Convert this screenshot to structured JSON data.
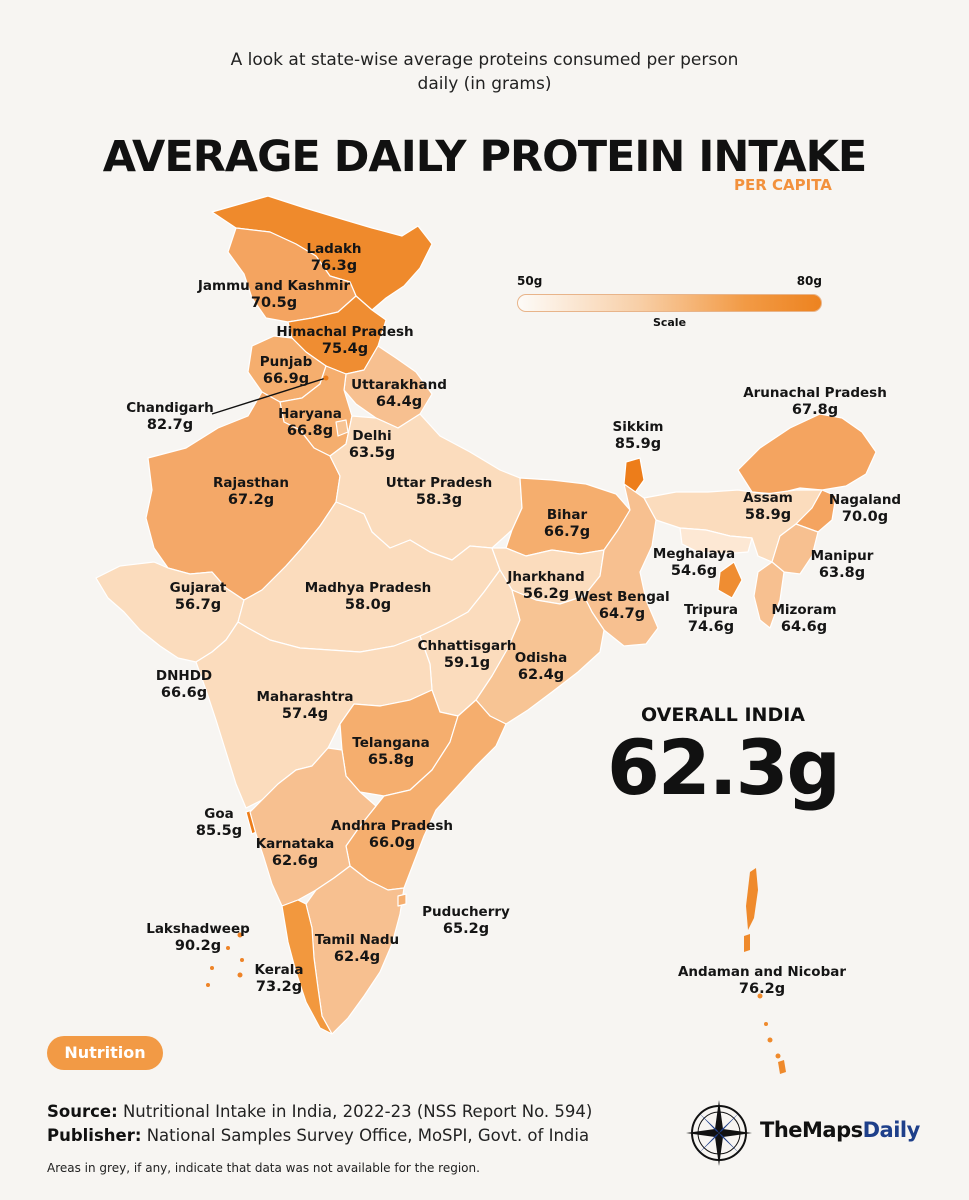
{
  "header": {
    "subtitle_line1": "A look at state-wise average proteins consumed per person",
    "subtitle_line2": "daily (in grams)",
    "title": "AVERAGE DAILY PROTEIN INTAKE",
    "title_sub": "PER CAPITA"
  },
  "scale": {
    "min_label": "50g",
    "max_label": "80g",
    "caption": "Scale",
    "min": 50,
    "max": 80
  },
  "regions": [
    {
      "name": "Ladakh",
      "value": "76.3g"
    },
    {
      "name": "Jammu and Kashmir",
      "value": "70.5g"
    },
    {
      "name": "Himachal Pradesh",
      "value": "75.4g"
    },
    {
      "name": "Punjab",
      "value": "66.9g"
    },
    {
      "name": "Uttarakhand",
      "value": "64.4g"
    },
    {
      "name": "Chandigarh",
      "value": "82.7g"
    },
    {
      "name": "Haryana",
      "value": "66.8g"
    },
    {
      "name": "Delhi",
      "value": "63.5g"
    },
    {
      "name": "Rajasthan",
      "value": "67.2g"
    },
    {
      "name": "Uttar Pradesh",
      "value": "58.3g"
    },
    {
      "name": "Bihar",
      "value": "66.7g"
    },
    {
      "name": "Sikkim",
      "value": "85.9g"
    },
    {
      "name": "Arunachal Pradesh",
      "value": "67.8g"
    },
    {
      "name": "Assam",
      "value": "58.9g"
    },
    {
      "name": "Nagaland",
      "value": "70.0g"
    },
    {
      "name": "Meghalaya",
      "value": "54.6g"
    },
    {
      "name": "Manipur",
      "value": "63.8g"
    },
    {
      "name": "Tripura",
      "value": "74.6g"
    },
    {
      "name": "Mizoram",
      "value": "64.6g"
    },
    {
      "name": "Gujarat",
      "value": "56.7g"
    },
    {
      "name": "Madhya Pradesh",
      "value": "58.0g"
    },
    {
      "name": "Jharkhand",
      "value": "56.2g"
    },
    {
      "name": "West Bengal",
      "value": "64.7g"
    },
    {
      "name": "Chhattisgarh",
      "value": "59.1g"
    },
    {
      "name": "Odisha",
      "value": "62.4g"
    },
    {
      "name": "DNHDD",
      "value": "66.6g"
    },
    {
      "name": "Maharashtra",
      "value": "57.4g"
    },
    {
      "name": "Telangana",
      "value": "65.8g"
    },
    {
      "name": "Goa",
      "value": "85.5g"
    },
    {
      "name": "Andhra Pradesh",
      "value": "66.0g"
    },
    {
      "name": "Karnataka",
      "value": "62.6g"
    },
    {
      "name": "Puducherry",
      "value": "65.2g"
    },
    {
      "name": "Lakshadweep",
      "value": "90.2g"
    },
    {
      "name": "Tamil Nadu",
      "value": "62.4g"
    },
    {
      "name": "Kerala",
      "value": "73.2g"
    },
    {
      "name": "Andaman and Nicobar",
      "value": "76.2g"
    }
  ],
  "overall": {
    "label": "OVERALL INDIA",
    "value": "62.3g"
  },
  "badge": "Nutrition",
  "source": {
    "source_label": "Source:",
    "source_text": "Nutritional Intake in India, 2022-23 (NSS Report No. 594)",
    "publisher_label": "Publisher:",
    "publisher_text": "National Samples Survey Office, MoSPI, Govt. of India"
  },
  "note": "Areas in grey, if any, indicate that data was not available for the region.",
  "brand": {
    "part1": "TheMaps",
    "part2": "Daily"
  },
  "colors": {
    "accent": "#f29a45",
    "low": "#fde8d4",
    "high": "#ed7d1a",
    "brand_blue": "#1e3f8a"
  }
}
